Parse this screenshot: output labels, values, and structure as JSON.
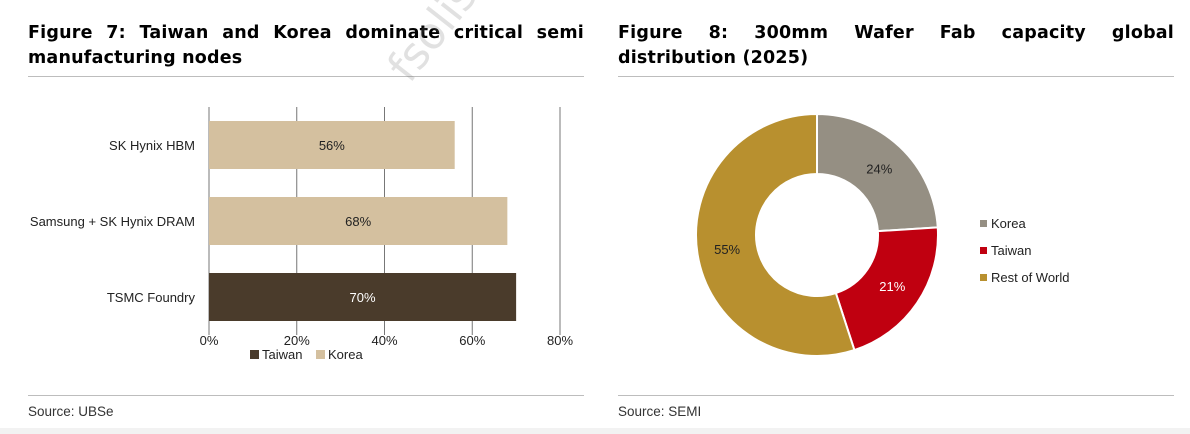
{
  "figures": {
    "left": {
      "title": "Figure 7: Taiwan and Korea dominate critical semi manufacturing nodes",
      "source": "Source: UBSe"
    },
    "right": {
      "title": "Figure 8: 300mm Wafer Fab capacity global distribution (2025)",
      "source": "Source: SEMI"
    }
  },
  "watermark": "fsolis@ lliyc.s",
  "chart_data": [
    {
      "type": "bar",
      "orientation": "horizontal",
      "categories": [
        "SK Hynix HBM",
        "Samsung + SK Hynix DRAM",
        "TSMC Foundry"
      ],
      "series": [
        {
          "name": "Taiwan",
          "values": [
            null,
            null,
            70
          ],
          "color": "#4a3b2b"
        },
        {
          "name": "Korea",
          "values": [
            56,
            68,
            null
          ],
          "color": "#d4c09f"
        }
      ],
      "data_labels": [
        "56%",
        "68%",
        "70%"
      ],
      "xlim": [
        0,
        80
      ],
      "xticks": [
        "0%",
        "20%",
        "40%",
        "60%",
        "80%"
      ],
      "grid": true,
      "legend": "bottom"
    },
    {
      "type": "pie",
      "style": "donut",
      "categories": [
        "Korea",
        "Taiwan",
        "Rest of World"
      ],
      "values": [
        24,
        21,
        55
      ],
      "labels": [
        "24%",
        "21%",
        "55%"
      ],
      "colors": [
        "#958f83",
        "#c00010",
        "#b8902f"
      ],
      "legend": "right"
    }
  ]
}
